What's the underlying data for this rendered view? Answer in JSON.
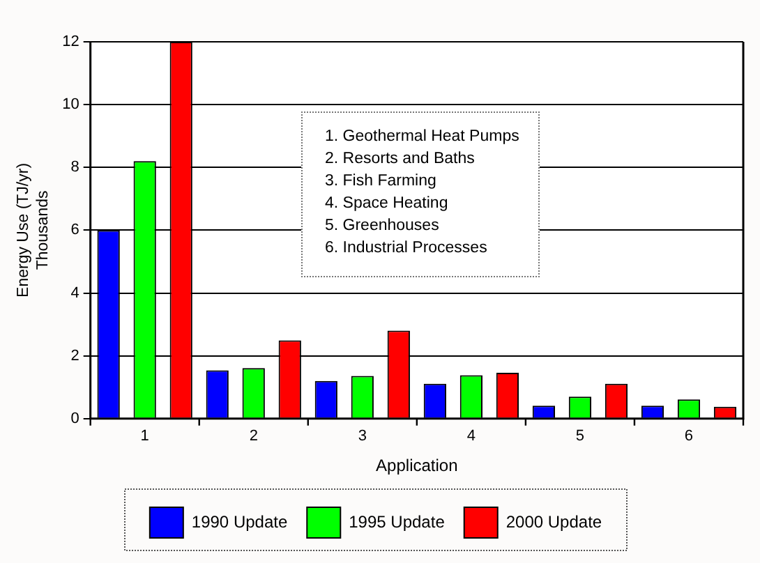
{
  "chart_data": {
    "type": "bar",
    "xlabel": "Application",
    "ylabel": "Energy Use (TJ/yr)\nThousands",
    "categories": [
      "1",
      "2",
      "3",
      "4",
      "5",
      "6"
    ],
    "series": [
      {
        "name": "1990 Update",
        "color": "#0000ff",
        "values": [
          6,
          1.54,
          1.2,
          1.11,
          0.41,
          0.41
        ]
      },
      {
        "name": "1995 Update",
        "color": "#00ff00",
        "values": [
          8.2,
          1.61,
          1.36,
          1.38,
          0.7,
          0.61
        ]
      },
      {
        "name": "2000 Update",
        "color": "#ff0000",
        "values": [
          12,
          2.49,
          2.8,
          1.46,
          1.11,
          0.38
        ]
      }
    ],
    "ylim": [
      0,
      12
    ],
    "yticks": [
      0,
      2,
      4,
      6,
      8,
      10,
      12
    ],
    "grid": "y",
    "legend": "bottom",
    "annotations": [
      "1. Geothermal Heat Pumps",
      "2. Resorts and Baths",
      "3. Fish Farming",
      "4. Space Heating",
      "5. Greenhouses",
      "6. Industrial Processes"
    ]
  }
}
